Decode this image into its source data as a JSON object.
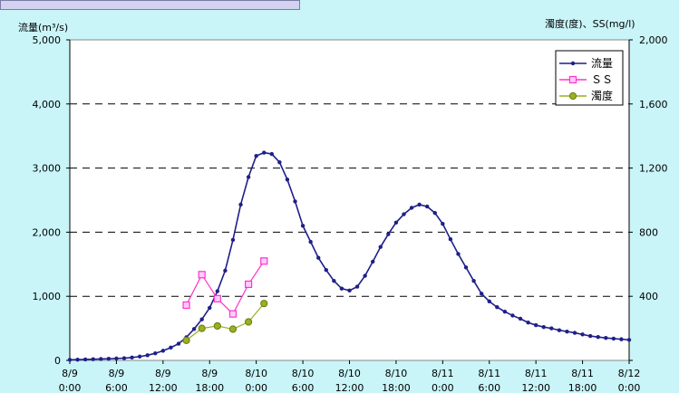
{
  "colors": {
    "background": "#c9f5f9",
    "plot_area": "#ffffff",
    "flow": "#1f1f8a",
    "ss": "#ff33cc",
    "turbidity": "#99b01f"
  },
  "chart_data": {
    "type": "line",
    "title": "",
    "ylabel_left": "流量(m³/s)",
    "ylabel_right": "濁度(度)、SS(mg/l)",
    "ylim_left": [
      0,
      5000
    ],
    "ylim_right": [
      0,
      2000
    ],
    "left_ticks": [
      "0",
      "1,000",
      "2,000",
      "3,000",
      "4,000",
      "5,000"
    ],
    "right_ticks": [
      "400",
      "800",
      "1,200",
      "1,600",
      "2,000"
    ],
    "x_hours_range": [
      0,
      72
    ],
    "x_ticks": [
      {
        "date": "8/9",
        "time": "0:00"
      },
      {
        "date": "8/9",
        "time": "6:00"
      },
      {
        "date": "8/9",
        "time": "12:00"
      },
      {
        "date": "8/9",
        "time": "18:00"
      },
      {
        "date": "8/10",
        "time": "0:00"
      },
      {
        "date": "8/10",
        "time": "6:00"
      },
      {
        "date": "8/10",
        "time": "12:00"
      },
      {
        "date": "8/10",
        "time": "18:00"
      },
      {
        "date": "8/11",
        "time": "0:00"
      },
      {
        "date": "8/11",
        "time": "6:00"
      },
      {
        "date": "8/11",
        "time": "12:00"
      },
      {
        "date": "8/11",
        "time": "18:00"
      },
      {
        "date": "8/12",
        "time": "0:00"
      }
    ],
    "grid": "dashed horizontal",
    "legend_position": "top-right",
    "series": [
      {
        "name": "流量",
        "axis": "left",
        "marker": "dot",
        "color": "#1f1f8a",
        "x": [
          0,
          1,
          2,
          3,
          4,
          5,
          6,
          7,
          8,
          9,
          10,
          11,
          12,
          13,
          14,
          15,
          16,
          17,
          18,
          19,
          20,
          21,
          22,
          23,
          24,
          25,
          26,
          27,
          28,
          29,
          30,
          31,
          32,
          33,
          34,
          35,
          36,
          37,
          38,
          39,
          40,
          41,
          42,
          43,
          44,
          45,
          46,
          47,
          48,
          49,
          50,
          51,
          52,
          53,
          54,
          55,
          56,
          57,
          58,
          59,
          60,
          61,
          62,
          63,
          64,
          65,
          66,
          67,
          68,
          69,
          70,
          71,
          72
        ],
        "values": [
          10,
          12,
          15,
          18,
          22,
          25,
          30,
          35,
          45,
          60,
          80,
          110,
          150,
          200,
          260,
          360,
          490,
          640,
          820,
          1080,
          1400,
          1880,
          2430,
          2860,
          3190,
          3240,
          3220,
          3090,
          2820,
          2480,
          2100,
          1850,
          1600,
          1410,
          1240,
          1120,
          1090,
          1150,
          1320,
          1540,
          1770,
          1970,
          2150,
          2280,
          2380,
          2430,
          2400,
          2300,
          2130,
          1890,
          1660,
          1450,
          1240,
          1040,
          920,
          830,
          760,
          700,
          650,
          590,
          550,
          520,
          500,
          470,
          450,
          430,
          405,
          380,
          365,
          350,
          340,
          330,
          320
        ],
        "x_labels_note": ""
      },
      {
        "name": "ＳＳ",
        "axis": "right",
        "marker": "square",
        "color": "#ff33cc",
        "x": [
          15,
          17,
          19,
          21,
          23,
          25
        ],
        "values": [
          345,
          535,
          385,
          290,
          475,
          620
        ]
      },
      {
        "name": "濁度",
        "axis": "right",
        "marker": "circle",
        "color": "#99b01f",
        "x": [
          15,
          17,
          19,
          21,
          23,
          25
        ],
        "values": [
          125,
          200,
          215,
          195,
          240,
          355
        ]
      }
    ]
  }
}
